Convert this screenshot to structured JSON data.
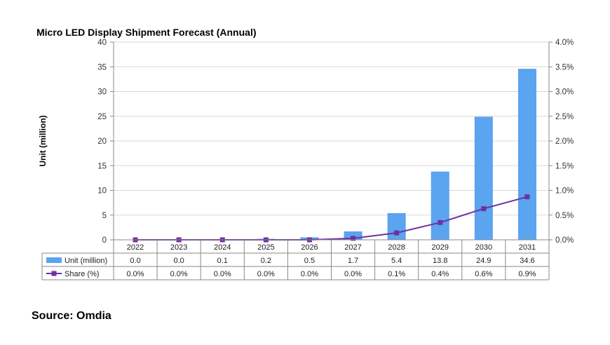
{
  "chart_data": {
    "type": "bar",
    "title": "Micro LED Display Shipment Forecast (Annual)",
    "ylabel": "Unit (million)",
    "y2label": "",
    "ylim": [
      0,
      40
    ],
    "y2lim": [
      0,
      4.0
    ],
    "y_ticks": [
      "0",
      "5",
      "10",
      "15",
      "20",
      "25",
      "30",
      "35",
      "40"
    ],
    "y2_ticks": [
      "0.0%",
      "0.5%",
      "1.0%",
      "1.5%",
      "2.0%",
      "2.5%",
      "3.0%",
      "3.5%",
      "4.0%"
    ],
    "categories": [
      "2022",
      "2023",
      "2024",
      "2025",
      "2026",
      "2027",
      "2028",
      "2029",
      "2030",
      "2031"
    ],
    "series": [
      {
        "name": "Unit (million)",
        "type": "bar",
        "axis": "left",
        "color": "#5ba4ef",
        "values": [
          0.0,
          0.0,
          0.1,
          0.2,
          0.5,
          1.7,
          5.4,
          13.8,
          24.9,
          34.6
        ],
        "labels": [
          "0.0",
          "0.0",
          "0.1",
          "0.2",
          "0.5",
          "1.7",
          "5.4",
          "13.8",
          "24.9",
          "34.6"
        ]
      },
      {
        "name": "Share (%)",
        "type": "line",
        "axis": "right",
        "color": "#7030a0",
        "values": [
          0.0,
          0.0,
          0.0,
          0.0,
          0.0,
          0.03,
          0.14,
          0.35,
          0.63,
          0.87
        ],
        "labels": [
          "0.0%",
          "0.0%",
          "0.0%",
          "0.0%",
          "0.0%",
          "0.0%",
          "0.1%",
          "0.4%",
          "0.6%",
          "0.9%"
        ]
      }
    ],
    "data_table": true,
    "grid": true
  },
  "source": "Source: Omdia"
}
